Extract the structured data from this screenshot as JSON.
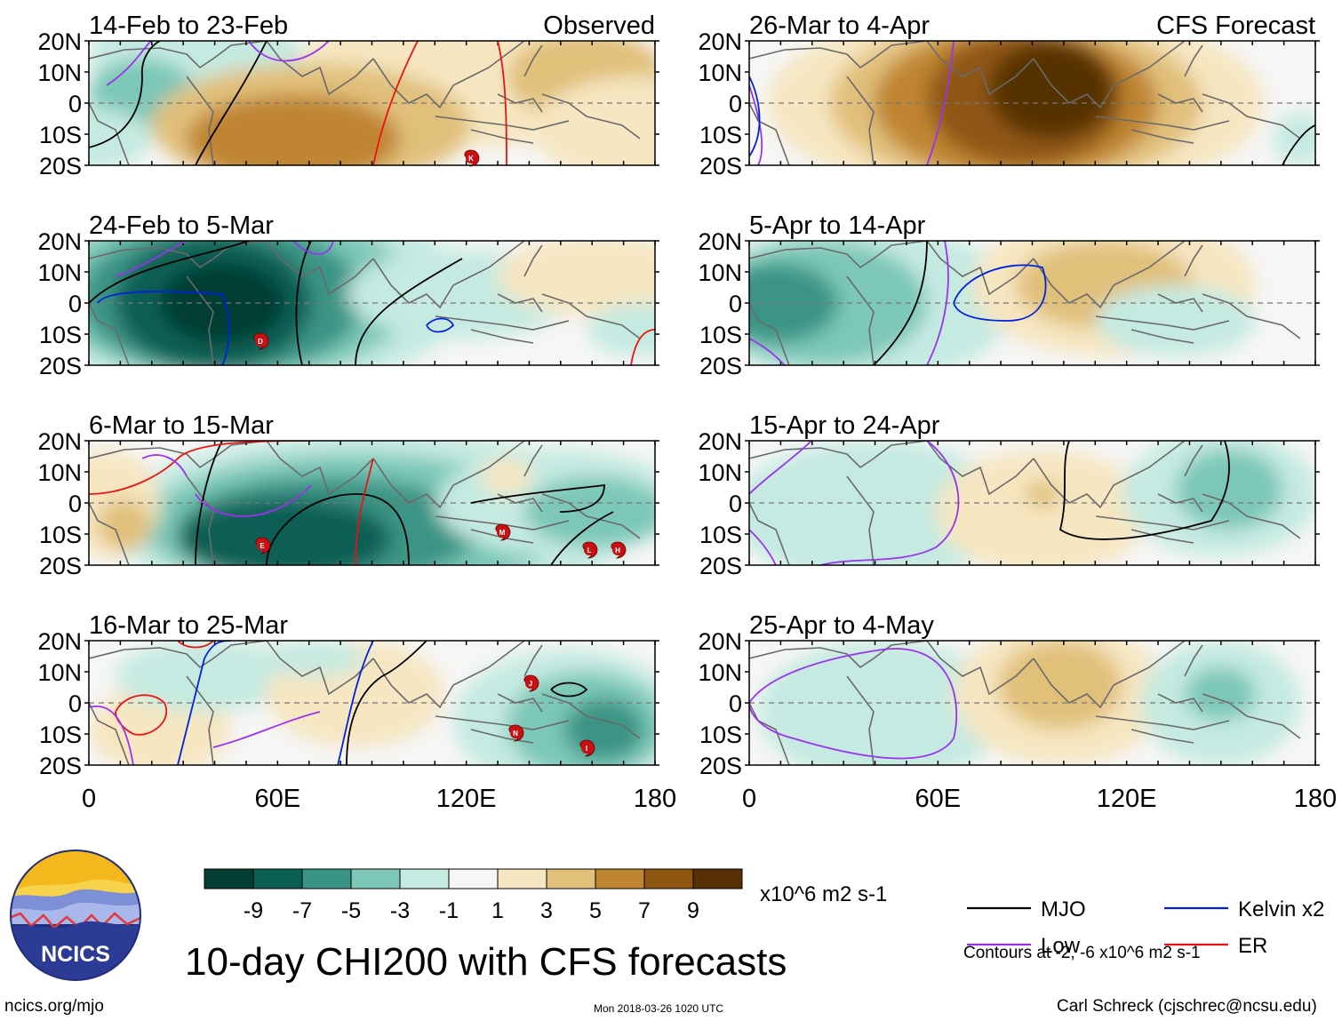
{
  "figure": {
    "title": "10-day CHI200 with CFS forecasts",
    "variable": "CHI200",
    "units": "x10^6 m2 s-1",
    "observed_label": "Observed",
    "forecast_label": "CFS Forecast"
  },
  "axes": {
    "lat_ticks": [
      "20N",
      "10N",
      "0",
      "10S",
      "20S"
    ],
    "lon_ticks": [
      "0",
      "60E",
      "120E",
      "180"
    ]
  },
  "panels": [
    {
      "period": "14-Feb to 23-Feb",
      "kind": "observed",
      "storms": [
        "K"
      ]
    },
    {
      "period": "24-Feb to 5-Mar",
      "kind": "observed",
      "storms": [
        "D"
      ]
    },
    {
      "period": "6-Mar to 15-Mar",
      "kind": "observed",
      "storms": [
        "E",
        "M",
        "L",
        "H"
      ]
    },
    {
      "period": "16-Mar to 25-Mar",
      "kind": "observed",
      "storms": [
        "J",
        "N",
        "I"
      ]
    },
    {
      "period": "26-Mar to 4-Apr",
      "kind": "forecast",
      "storms": []
    },
    {
      "period": "5-Apr to 14-Apr",
      "kind": "forecast",
      "storms": []
    },
    {
      "period": "15-Apr to 24-Apr",
      "kind": "forecast",
      "storms": []
    },
    {
      "period": "25-Apr to 4-May",
      "kind": "forecast",
      "storms": []
    }
  ],
  "colorbar": {
    "labels": [
      "-9",
      "-7",
      "-5",
      "-3",
      "-1",
      "1",
      "3",
      "5",
      "7",
      "9"
    ],
    "colors": [
      "#033d33",
      "#0b5e54",
      "#3a9485",
      "#7cc7b8",
      "#c5eae1",
      "#f6f6f6",
      "#f6e6c1",
      "#e1c07a",
      "#bf8530",
      "#8f5612",
      "#573006"
    ]
  },
  "legend": {
    "items": [
      {
        "label": "MJO",
        "color": "#000000"
      },
      {
        "label": "Kelvin x2",
        "color": "#0022dd"
      },
      {
        "label": "Low",
        "color": "#9933ee"
      },
      {
        "label": "ER",
        "color": "#ee1111"
      }
    ],
    "contours_note": "Contours at -2, -6 x10^6 m2 s-1"
  },
  "footer": {
    "logo_text": "NCICS",
    "website": "ncics.org/mjo",
    "timestamp": "Mon 2018-03-26 1020 UTC",
    "author": "Carl Schreck (cjschrec@ncsu.edu)"
  }
}
